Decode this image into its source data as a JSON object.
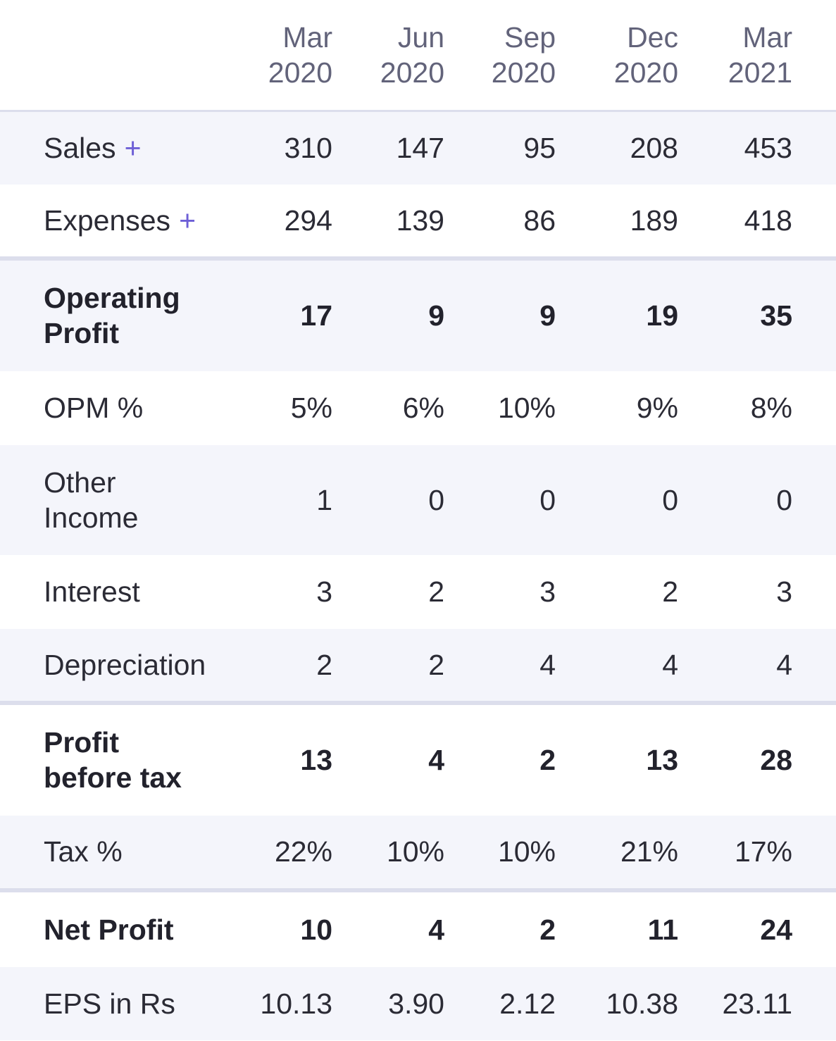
{
  "table": {
    "headers": [
      {
        "month": "Mar",
        "year": "2020"
      },
      {
        "month": "Jun",
        "year": "2020"
      },
      {
        "month": "Sep",
        "year": "2020"
      },
      {
        "month": "Dec",
        "year": "2020"
      },
      {
        "month": "Mar",
        "year": "2021"
      }
    ],
    "rows": [
      {
        "label": "Sales",
        "expand": "+",
        "values": [
          "310",
          "147",
          "95",
          "208",
          "453"
        ]
      },
      {
        "label": "Expenses",
        "expand": "+",
        "values": [
          "294",
          "139",
          "86",
          "189",
          "418"
        ]
      },
      {
        "label": "Operating Profit",
        "values": [
          "17",
          "9",
          "9",
          "19",
          "35"
        ]
      },
      {
        "label": "OPM %",
        "values": [
          "5%",
          "6%",
          "10%",
          "9%",
          "8%"
        ]
      },
      {
        "label": "Other Income",
        "values": [
          "1",
          "0",
          "0",
          "0",
          "0"
        ]
      },
      {
        "label": "Interest",
        "values": [
          "3",
          "2",
          "3",
          "2",
          "3"
        ]
      },
      {
        "label": "Depreciation",
        "values": [
          "2",
          "2",
          "4",
          "4",
          "4"
        ]
      },
      {
        "label": "Profit before tax",
        "values": [
          "13",
          "4",
          "2",
          "13",
          "28"
        ]
      },
      {
        "label": "Tax %",
        "values": [
          "22%",
          "10%",
          "10%",
          "21%",
          "17%"
        ]
      },
      {
        "label": "Net Profit",
        "values": [
          "10",
          "4",
          "2",
          "11",
          "24"
        ]
      },
      {
        "label": "EPS in Rs",
        "values": [
          "10.13",
          "3.90",
          "2.12",
          "10.38",
          "23.11"
        ]
      }
    ]
  }
}
